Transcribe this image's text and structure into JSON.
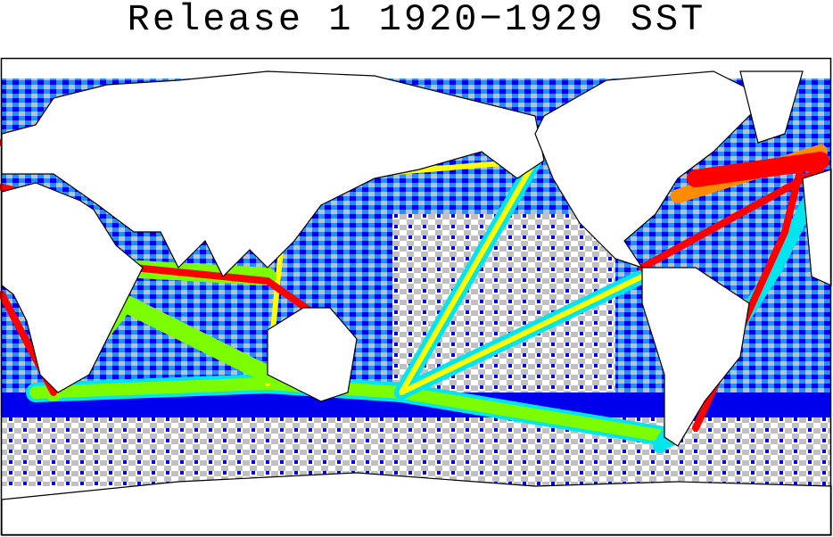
{
  "header": {
    "title": "Release 1 1920−1929 SST"
  }
}
